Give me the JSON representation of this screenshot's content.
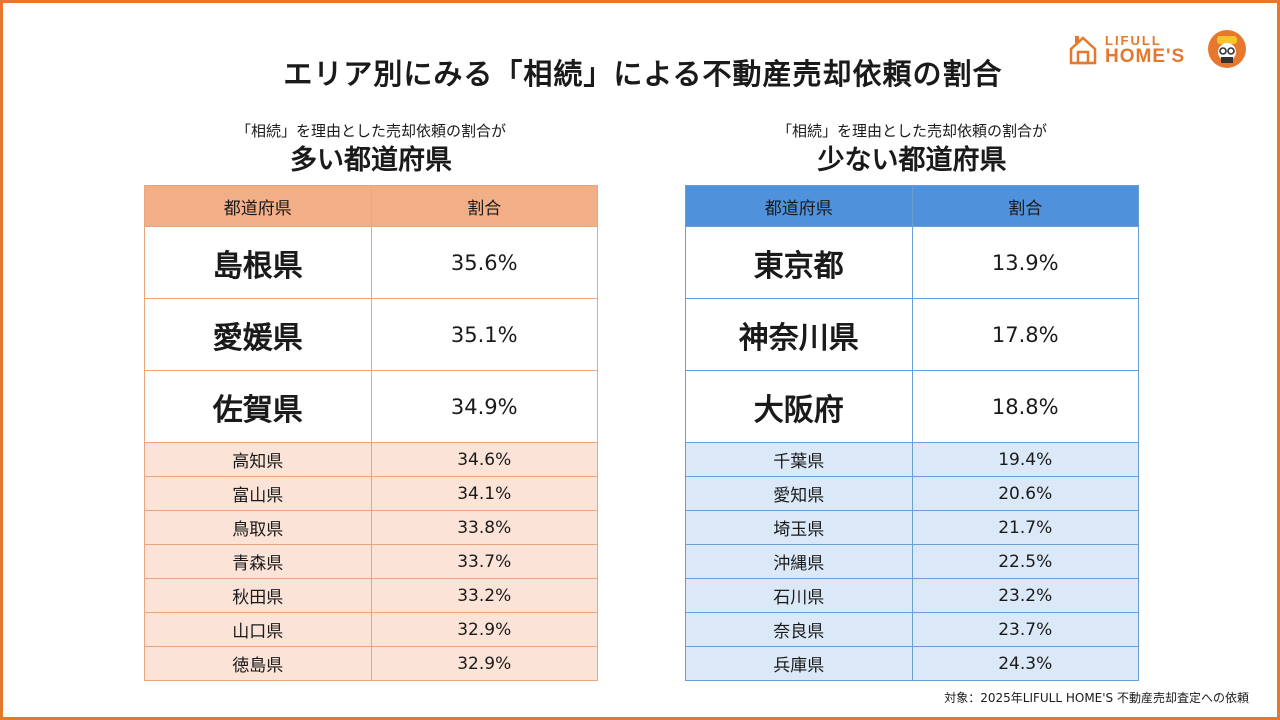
{
  "title": "エリア別にみる「相続」による不動産売却依頼の割合",
  "logo": {
    "line1": "LIFULL",
    "line2": "HOME'S"
  },
  "colors": {
    "frame": "#e8772e",
    "high_header": "#f2ae87",
    "high_rows": "#fbe3d7",
    "low_header": "#4f92db",
    "low_rows": "#dae8f7"
  },
  "footnote": "対象：2025年LIFULL HOME'S 不動産売却査定への依頼",
  "chart_data": [
    {
      "type": "table",
      "subtitle": "「相続」を理由とした売却依頼の割合が",
      "title": "多い都道府県",
      "columns": [
        "都道府県",
        "割合"
      ],
      "rows": [
        [
          "島根県",
          "35.6%"
        ],
        [
          "愛媛県",
          "35.1%"
        ],
        [
          "佐賀県",
          "34.9%"
        ],
        [
          "高知県",
          "34.6%"
        ],
        [
          "富山県",
          "34.1%"
        ],
        [
          "鳥取県",
          "33.8%"
        ],
        [
          "青森県",
          "33.7%"
        ],
        [
          "秋田県",
          "33.2%"
        ],
        [
          "山口県",
          "32.9%"
        ],
        [
          "徳島県",
          "32.9%"
        ]
      ]
    },
    {
      "type": "table",
      "subtitle": "「相続」を理由とした売却依頼の割合が",
      "title": "少ない都道府県",
      "columns": [
        "都道府県",
        "割合"
      ],
      "rows": [
        [
          "東京都",
          "13.9%"
        ],
        [
          "神奈川県",
          "17.8%"
        ],
        [
          "大阪府",
          "18.8%"
        ],
        [
          "千葉県",
          "19.4%"
        ],
        [
          "愛知県",
          "20.6%"
        ],
        [
          "埼玉県",
          "21.7%"
        ],
        [
          "沖縄県",
          "22.5%"
        ],
        [
          "石川県",
          "23.2%"
        ],
        [
          "奈良県",
          "23.7%"
        ],
        [
          "兵庫県",
          "24.3%"
        ]
      ]
    }
  ]
}
